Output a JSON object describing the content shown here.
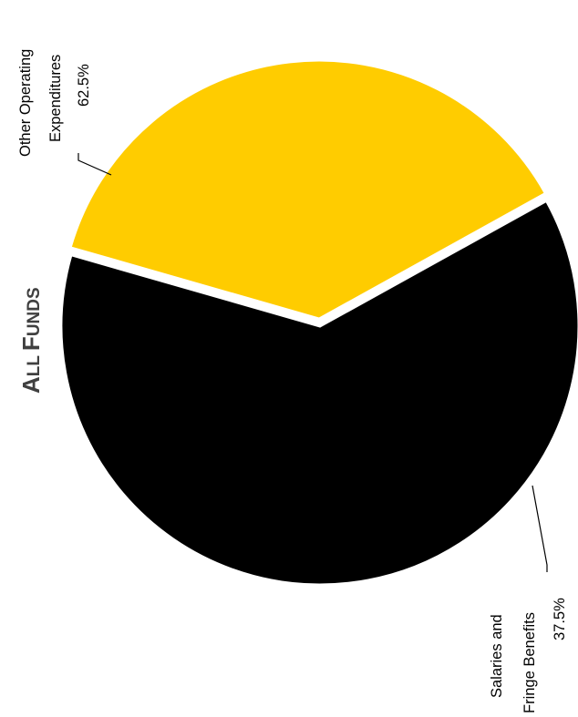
{
  "chart_data": {
    "type": "pie",
    "title": "All Funds",
    "slices": [
      {
        "name": "Other Operating Expenditures",
        "label_lines": [
          "Other Operating",
          "Expenditures"
        ],
        "value": 62.5,
        "value_label": "62.5%",
        "color": "#000000"
      },
      {
        "name": "Salaries and Fringe Benefits",
        "label_lines": [
          "Salaries and",
          "Fringe Benefits"
        ],
        "value": 37.5,
        "value_label": "37.5%",
        "color": "#FFCC00"
      }
    ]
  }
}
